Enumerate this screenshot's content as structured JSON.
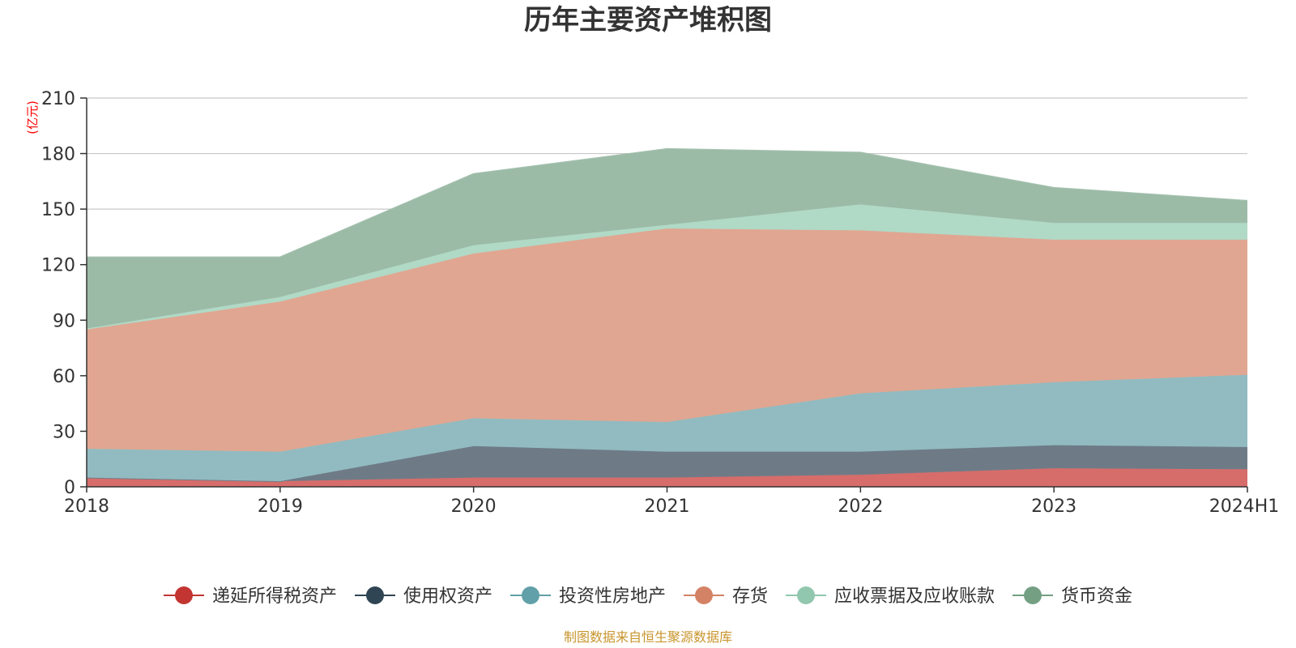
{
  "chart_data": {
    "type": "area",
    "stacked": true,
    "title": "历年主要资产堆积图",
    "ylabel": "(亿元)",
    "xlabel": "",
    "ylim": [
      0,
      210
    ],
    "yticks": [
      0,
      30,
      60,
      90,
      120,
      150,
      180,
      210
    ],
    "categories": [
      "2018",
      "2019",
      "2020",
      "2021",
      "2022",
      "2023",
      "2024H1"
    ],
    "legend_position": "bottom",
    "grid": true,
    "series": [
      {
        "name": "递延所得税资产",
        "color": "#c23531",
        "fill": "#d66d6b",
        "values": [
          5,
          3,
          5,
          5,
          6.5,
          10,
          9.5
        ]
      },
      {
        "name": "使用权资产",
        "color": "#2f4554",
        "fill": "#6e7b86",
        "values": [
          0,
          0,
          17,
          14,
          12.5,
          12.5,
          12
        ]
      },
      {
        "name": "投资性房地产",
        "color": "#61a0a8",
        "fill": "#91bbc1",
        "values": [
          15.5,
          16,
          15,
          16,
          31.5,
          34,
          39
        ]
      },
      {
        "name": "存货",
        "color": "#d48265",
        "fill": "#e0a691",
        "values": [
          64.5,
          81,
          89,
          104.5,
          88,
          77,
          73
        ]
      },
      {
        "name": "应收票据及应收账款",
        "color": "#91c7ae",
        "fill": "#b0d9c6",
        "values": [
          0.5,
          2.5,
          4.5,
          2,
          14,
          9,
          9
        ]
      },
      {
        "name": "货币资金",
        "color": "#749f83",
        "fill": "#9cbba7",
        "values": [
          38.5,
          21.5,
          38.5,
          41,
          28,
          19,
          12
        ]
      }
    ],
    "source": "制图数据来自恒生聚源数据库"
  }
}
